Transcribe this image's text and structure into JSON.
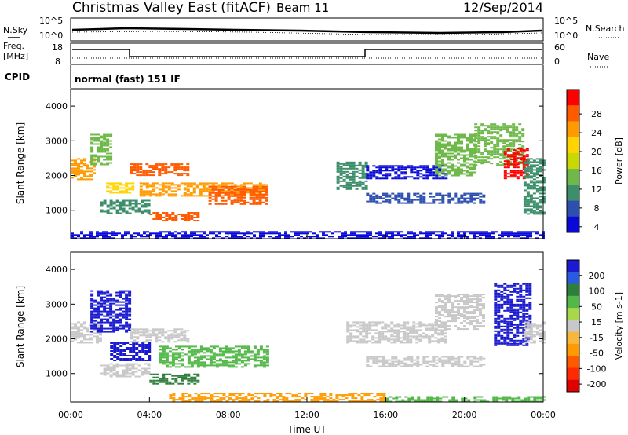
{
  "header": {
    "title": "Christmas Valley East (fitACF)",
    "beam": "Beam 11",
    "date": "12/Sep/2014"
  },
  "top_panels": {
    "nsky_label": "N.Sky",
    "nsearch_label": "N.Search",
    "noise_ticks_left": [
      "10^5",
      "10^0"
    ],
    "noise_ticks_right": [
      "10^5",
      "10^0"
    ],
    "freq_label": "Freq.",
    "freq_unit": "[MHz]",
    "freq_ticks": [
      "18",
      "8"
    ],
    "nave_label": "Nave",
    "nave_ticks": [
      "60",
      "0"
    ],
    "cpid_label": "CPID",
    "cpid_value": "normal (fast) 151 IF"
  },
  "chart_data": [
    {
      "type": "heatmap",
      "title": "",
      "xlabel": "",
      "ylabel": "Slant Range [km]",
      "xlim": [
        0,
        24
      ],
      "ylim": [
        180,
        4500
      ],
      "yticks": [
        "4000",
        "3000",
        "2000",
        "1000"
      ],
      "colorbar": {
        "label": "Power [dB]",
        "ticks": [
          "28",
          "24",
          "20",
          "16",
          "12",
          "8",
          "4"
        ],
        "colors": [
          "#ff0000",
          "#ff5a00",
          "#ff9b00",
          "#ffd400",
          "#c8d800",
          "#6fb94a",
          "#3d8f6b",
          "#2d4fb0",
          "#0a0ad8"
        ]
      },
      "regions": [
        {
          "t0": 0.0,
          "t1": 1.2,
          "r0": 1900,
          "r1": 2500,
          "level": 22
        },
        {
          "t0": 1.0,
          "t1": 2.0,
          "r0": 2300,
          "r1": 3200,
          "level": 14
        },
        {
          "t0": 1.8,
          "t1": 3.2,
          "r0": 1500,
          "r1": 1800,
          "level": 18
        },
        {
          "t0": 3.0,
          "t1": 6.0,
          "r0": 2000,
          "r1": 2350,
          "level": 24
        },
        {
          "t0": 3.5,
          "t1": 10.0,
          "r0": 1400,
          "r1": 1800,
          "level": 20
        },
        {
          "t0": 7.0,
          "t1": 10.0,
          "r0": 1200,
          "r1": 1700,
          "level": 27
        },
        {
          "t0": 4.0,
          "t1": 6.5,
          "r0": 700,
          "r1": 950,
          "level": 26
        },
        {
          "t0": 1.5,
          "t1": 4.0,
          "r0": 900,
          "r1": 1300,
          "level": 10
        },
        {
          "t0": 0.0,
          "t1": 24.0,
          "r0": 200,
          "r1": 400,
          "level": 6
        },
        {
          "t0": 13.5,
          "t1": 15.0,
          "r0": 1600,
          "r1": 2400,
          "level": 10
        },
        {
          "t0": 15.0,
          "t1": 19.0,
          "r0": 1900,
          "r1": 2300,
          "level": 6
        },
        {
          "t0": 15.0,
          "t1": 21.0,
          "r0": 1200,
          "r1": 1500,
          "level": 8
        },
        {
          "t0": 18.5,
          "t1": 20.5,
          "r0": 2000,
          "r1": 3200,
          "level": 12
        },
        {
          "t0": 20.5,
          "t1": 23.0,
          "r0": 2300,
          "r1": 3500,
          "level": 14
        },
        {
          "t0": 22.0,
          "t1": 23.2,
          "r0": 1900,
          "r1": 2800,
          "level": 28
        },
        {
          "t0": 23.0,
          "t1": 24.0,
          "r0": 900,
          "r1": 2500,
          "level": 10
        }
      ]
    },
    {
      "type": "heatmap",
      "title": "",
      "xlabel": "Time UT",
      "ylabel": "Slant Range [km]",
      "xlim": [
        0,
        24
      ],
      "ylim": [
        180,
        4500
      ],
      "xticks": [
        "00:00",
        "04:00",
        "08:00",
        "12:00",
        "16:00",
        "20:00",
        "00:00"
      ],
      "yticks": [
        "4000",
        "3000",
        "2000",
        "1000"
      ],
      "colorbar": {
        "label": "Velocity [m s-1]",
        "ticks": [
          "200",
          "100",
          "50",
          "15",
          "-15",
          "-50",
          "-100",
          "-200"
        ],
        "colors": [
          "#1a1ad0",
          "#2a5ae0",
          "#2e7f3c",
          "#52b848",
          "#a8d84a",
          "#c8c8c8",
          "#f6b73c",
          "#ff9b00",
          "#ff5a00",
          "#ff2a00",
          "#e00000"
        ]
      },
      "regions": [
        {
          "t0": 0.0,
          "t1": 1.5,
          "r0": 1900,
          "r1": 2500,
          "level": -5
        },
        {
          "t0": 1.0,
          "t1": 3.0,
          "r0": 2200,
          "r1": 3400,
          "level": 200
        },
        {
          "t0": 2.0,
          "t1": 4.0,
          "r0": 1400,
          "r1": 1900,
          "level": 200
        },
        {
          "t0": 3.0,
          "t1": 6.0,
          "r0": 1900,
          "r1": 2300,
          "level": -5
        },
        {
          "t0": 4.5,
          "t1": 10.0,
          "r0": 1200,
          "r1": 1800,
          "level": 40
        },
        {
          "t0": 4.0,
          "t1": 6.5,
          "r0": 700,
          "r1": 1000,
          "level": 60
        },
        {
          "t0": 1.5,
          "t1": 4.0,
          "r0": 900,
          "r1": 1300,
          "level": -5
        },
        {
          "t0": 5.0,
          "t1": 16.0,
          "r0": 200,
          "r1": 450,
          "level": -40
        },
        {
          "t0": 16.0,
          "t1": 24.0,
          "r0": 200,
          "r1": 350,
          "level": 40
        },
        {
          "t0": 14.0,
          "t1": 19.0,
          "r0": 1900,
          "r1": 2500,
          "level": -5
        },
        {
          "t0": 15.0,
          "t1": 21.0,
          "r0": 1200,
          "r1": 1500,
          "level": -5
        },
        {
          "t0": 18.5,
          "t1": 21.0,
          "r0": 2300,
          "r1": 3300,
          "level": -5
        },
        {
          "t0": 21.5,
          "t1": 23.3,
          "r0": 1800,
          "r1": 3600,
          "level": 200
        },
        {
          "t0": 23.0,
          "t1": 24.0,
          "r0": 1900,
          "r1": 2500,
          "level": -5
        }
      ]
    }
  ]
}
